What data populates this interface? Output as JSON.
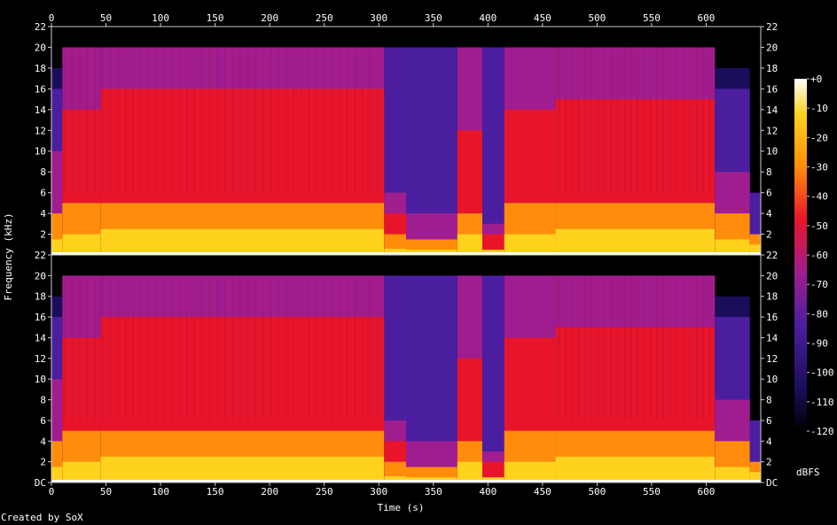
{
  "credit": "Created by SoX",
  "chart_data": {
    "type": "heatmap",
    "title": "",
    "xlabel": "Time (s)",
    "ylabel": "Frequency (kHz)",
    "colorbar_label": "dBFS",
    "xlim": [
      0,
      650
    ],
    "ylim": [
      0,
      22
    ],
    "x_ticks": [
      "0",
      "50",
      "100",
      "150",
      "200",
      "250",
      "300",
      "350",
      "400",
      "450",
      "500",
      "550",
      "600"
    ],
    "y_ticks_top": [
      "2",
      "4",
      "6",
      "8",
      "10",
      "12",
      "14",
      "16",
      "18",
      "20",
      "22"
    ],
    "y_ticks_bottom": [
      "DC",
      "2",
      "4",
      "6",
      "8",
      "10",
      "12",
      "14",
      "16",
      "18",
      "20",
      "22"
    ],
    "colorbar_ticks": [
      "+0",
      "-10",
      "-20",
      "-30",
      "-40",
      "-50",
      "-60",
      "-70",
      "-80",
      "-90",
      "-100",
      "-110",
      "-120"
    ],
    "colorbar_range": [
      -120,
      0
    ],
    "channels": 2,
    "colors": {
      "black": "#000000",
      "navy": "#1a0e5a",
      "purple": "#4b1ea0",
      "magenta": "#a01d8f",
      "red": "#e8152a",
      "orange": "#ff8c0a",
      "yellow": "#ffd21e",
      "white": "#ffffff"
    }
  }
}
